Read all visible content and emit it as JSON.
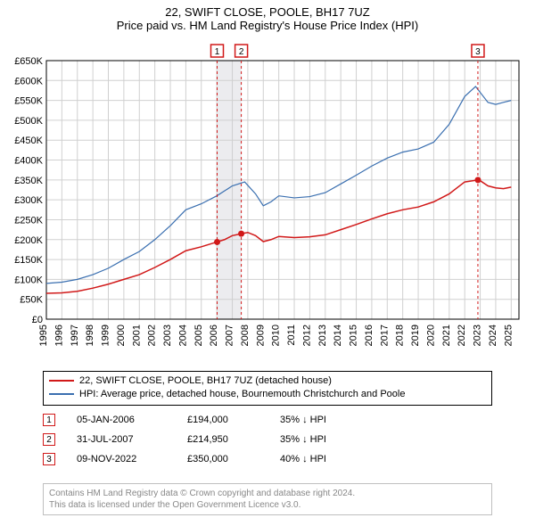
{
  "title": {
    "line1": "22, SWIFT CLOSE, POOLE, BH17 7UZ",
    "line2": "Price paid vs. HM Land Registry's House Price Index (HPI)",
    "fontsize": 13,
    "color": "#000000"
  },
  "chart": {
    "type": "line",
    "background_color": "#ffffff",
    "grid_color": "#d0d0d0",
    "x": {
      "min": 1995,
      "max": 2025.5,
      "ticks": [
        1995,
        1996,
        1997,
        1998,
        1999,
        2000,
        2001,
        2002,
        2003,
        2004,
        2005,
        2006,
        2007,
        2008,
        2009,
        2010,
        2011,
        2012,
        2013,
        2014,
        2015,
        2016,
        2017,
        2018,
        2019,
        2020,
        2021,
        2022,
        2023,
        2024,
        2025
      ],
      "tick_fontsize": 11,
      "tick_rotation": -90
    },
    "y": {
      "min": 0,
      "max": 650000,
      "ticks": [
        0,
        50000,
        100000,
        150000,
        200000,
        250000,
        300000,
        350000,
        400000,
        450000,
        500000,
        550000,
        600000,
        650000
      ],
      "tick_labels": [
        "£0",
        "£50K",
        "£100K",
        "£150K",
        "£200K",
        "£250K",
        "£300K",
        "£350K",
        "£400K",
        "£450K",
        "£500K",
        "£550K",
        "£600K",
        "£650K"
      ],
      "tick_fontsize": 11
    },
    "highlight_band": {
      "from": 2006.0,
      "to": 2007.6,
      "fill": "rgba(200,200,210,0.35)"
    },
    "series": [
      {
        "id": "price_paid",
        "label": "22, SWIFT CLOSE, POOLE, BH17 7UZ (detached house)",
        "color": "#d11919",
        "line_width": 1.5,
        "points": [
          [
            1995.0,
            65000
          ],
          [
            1996.0,
            66000
          ],
          [
            1997.0,
            70000
          ],
          [
            1998.0,
            78000
          ],
          [
            1999.0,
            88000
          ],
          [
            2000.0,
            100000
          ],
          [
            2001.0,
            112000
          ],
          [
            2002.0,
            130000
          ],
          [
            2003.0,
            150000
          ],
          [
            2004.0,
            172000
          ],
          [
            2005.0,
            182000
          ],
          [
            2006.0,
            194000
          ],
          [
            2006.5,
            200000
          ],
          [
            2007.0,
            210000
          ],
          [
            2007.6,
            214950
          ],
          [
            2008.0,
            218000
          ],
          [
            2008.5,
            210000
          ],
          [
            2009.0,
            195000
          ],
          [
            2009.5,
            200000
          ],
          [
            2010.0,
            208000
          ],
          [
            2011.0,
            205000
          ],
          [
            2012.0,
            207000
          ],
          [
            2013.0,
            212000
          ],
          [
            2014.0,
            225000
          ],
          [
            2015.0,
            238000
          ],
          [
            2016.0,
            252000
          ],
          [
            2017.0,
            265000
          ],
          [
            2018.0,
            275000
          ],
          [
            2019.0,
            282000
          ],
          [
            2020.0,
            295000
          ],
          [
            2021.0,
            315000
          ],
          [
            2022.0,
            345000
          ],
          [
            2022.85,
            350000
          ],
          [
            2023.0,
            348000
          ],
          [
            2023.5,
            335000
          ],
          [
            2024.0,
            330000
          ],
          [
            2024.5,
            328000
          ],
          [
            2025.0,
            332000
          ]
        ],
        "markers": [
          {
            "n": "1",
            "x": 2006.02,
            "y": 194000
          },
          {
            "n": "2",
            "x": 2007.58,
            "y": 214950
          },
          {
            "n": "3",
            "x": 2022.85,
            "y": 350000
          }
        ]
      },
      {
        "id": "hpi",
        "label": "HPI: Average price, detached house, Bournemouth Christchurch and Poole",
        "color": "#3a6fb0",
        "line_width": 1.2,
        "points": [
          [
            1995.0,
            90000
          ],
          [
            1996.0,
            93000
          ],
          [
            1997.0,
            100000
          ],
          [
            1998.0,
            112000
          ],
          [
            1999.0,
            128000
          ],
          [
            2000.0,
            150000
          ],
          [
            2001.0,
            170000
          ],
          [
            2002.0,
            200000
          ],
          [
            2003.0,
            235000
          ],
          [
            2004.0,
            275000
          ],
          [
            2005.0,
            290000
          ],
          [
            2006.0,
            310000
          ],
          [
            2007.0,
            335000
          ],
          [
            2007.8,
            345000
          ],
          [
            2008.5,
            315000
          ],
          [
            2009.0,
            285000
          ],
          [
            2009.5,
            295000
          ],
          [
            2010.0,
            310000
          ],
          [
            2011.0,
            305000
          ],
          [
            2012.0,
            308000
          ],
          [
            2013.0,
            318000
          ],
          [
            2014.0,
            340000
          ],
          [
            2015.0,
            362000
          ],
          [
            2016.0,
            385000
          ],
          [
            2017.0,
            405000
          ],
          [
            2018.0,
            420000
          ],
          [
            2019.0,
            428000
          ],
          [
            2020.0,
            445000
          ],
          [
            2021.0,
            490000
          ],
          [
            2022.0,
            560000
          ],
          [
            2022.7,
            585000
          ],
          [
            2023.0,
            570000
          ],
          [
            2023.5,
            545000
          ],
          [
            2024.0,
            540000
          ],
          [
            2024.5,
            545000
          ],
          [
            2025.0,
            550000
          ]
        ]
      }
    ],
    "top_markers": [
      {
        "n": "1",
        "x": 2006.02,
        "color": "#d11919"
      },
      {
        "n": "2",
        "x": 2007.58,
        "color": "#d11919"
      },
      {
        "n": "3",
        "x": 2022.85,
        "color": "#d11919"
      }
    ]
  },
  "legend": {
    "items": [
      {
        "color": "#d11919",
        "text": "22, SWIFT CLOSE, POOLE, BH17 7UZ (detached house)"
      },
      {
        "color": "#3a6fb0",
        "text": "HPI: Average price, detached house, Bournemouth Christchurch and Poole"
      }
    ]
  },
  "sales": [
    {
      "n": "1",
      "color": "#d11919",
      "date": "05-JAN-2006",
      "price": "£194,000",
      "delta": "35% ↓ HPI"
    },
    {
      "n": "2",
      "color": "#d11919",
      "date": "31-JUL-2007",
      "price": "£214,950",
      "delta": "35% ↓ HPI"
    },
    {
      "n": "3",
      "color": "#d11919",
      "date": "09-NOV-2022",
      "price": "£350,000",
      "delta": "40% ↓ HPI"
    }
  ],
  "footnote": {
    "line1": "Contains HM Land Registry data © Crown copyright and database right 2024.",
    "line2": "This data is licensed under the Open Government Licence v3.0.",
    "color": "#888888"
  }
}
